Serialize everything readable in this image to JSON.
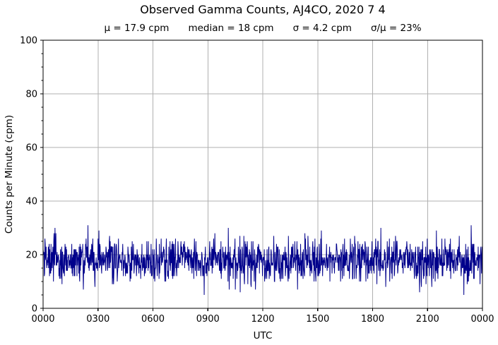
{
  "header": {
    "title": "Observed Gamma Counts, AJ4CO, 2020 7 4",
    "stats": {
      "mean": "μ = 17.9 cpm",
      "median": "median = 18 cpm",
      "sigma": "σ = 4.2 cpm",
      "ratio": "σ/μ = 23%"
    }
  },
  "chart_data": {
    "type": "line",
    "title": "Observed Gamma Counts, AJ4CO, 2020 7 4",
    "xlabel": "UTC",
    "ylabel": "Counts per Minute (cpm)",
    "xlim_minutes": [
      0,
      1440
    ],
    "ylim": [
      0,
      100
    ],
    "xticklabels": [
      "0000",
      "0300",
      "0600",
      "0900",
      "1200",
      "1500",
      "1800",
      "2100",
      "0000"
    ],
    "yticks": [
      0,
      20,
      40,
      60,
      80,
      100
    ],
    "yticklabels": [
      "0",
      "20",
      "40",
      "60",
      "80",
      "100"
    ],
    "y_minor_tick_step": 5,
    "grid": true,
    "legend": "none",
    "series_name": "observed-gamma-counts",
    "sampling": "one sample per minute over 24 hours",
    "n_samples": 1440,
    "stats": {
      "mean_cpm": 17.9,
      "median_cpm": 18,
      "sigma_cpm": 4.2,
      "sigma_over_mean_pct": 23
    },
    "observed_min_cpm": 5,
    "observed_max_cpm": 33,
    "line_color": "#00008B",
    "grid_color": "#b0b0b0",
    "axis_color": "#000000",
    "background_color": "#ffffff"
  }
}
